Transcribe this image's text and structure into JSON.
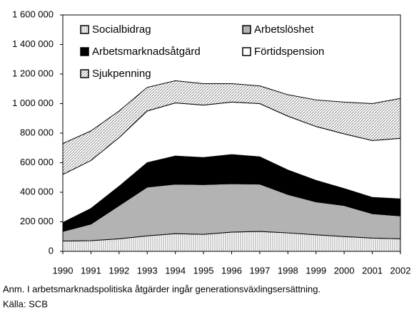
{
  "chart_data": {
    "type": "stacked_area",
    "x": [
      1990,
      1991,
      1992,
      1993,
      1994,
      1995,
      1996,
      1997,
      1998,
      1999,
      2000,
      2001,
      2002
    ],
    "xlim": [
      1990,
      2002
    ],
    "xticks": [
      1990,
      1991,
      1992,
      1993,
      1994,
      1995,
      1996,
      1997,
      1998,
      1999,
      2000,
      2001,
      2002
    ],
    "ylim": [
      0,
      1600000
    ],
    "yticks": [
      0,
      {
        "value": 200000,
        "label": "200 000"
      },
      {
        "value": 400000,
        "label": "400 000"
      },
      {
        "value": 600000,
        "label": "600 000"
      },
      {
        "value": 800000,
        "label": "800 000"
      },
      {
        "value": 1000000,
        "label": "1 000 000"
      },
      {
        "value": 1200000,
        "label": "1 200 000"
      },
      {
        "value": 1400000,
        "label": "1 400 000"
      },
      {
        "value": 1600000,
        "label": "1 600 000"
      }
    ],
    "series": [
      {
        "name": "Socialbidrag",
        "color": "#ffffff",
        "pattern": "vertical",
        "values": [
          70000,
          72000,
          85000,
          105000,
          120000,
          115000,
          130000,
          135000,
          125000,
          112000,
          100000,
          90000,
          85000
        ]
      },
      {
        "name": "Arbetslöshet",
        "color": "#b3b3b3",
        "values": [
          65000,
          113000,
          225000,
          330000,
          335000,
          337000,
          328000,
          320000,
          260000,
          223000,
          210000,
          165000,
          155000
        ]
      },
      {
        "name": "Arbetsmarknadsåtgärd",
        "color": "#000000",
        "values": [
          60000,
          105000,
          130000,
          165000,
          190000,
          183000,
          197000,
          185000,
          165000,
          145000,
          115000,
          110000,
          115000
        ]
      },
      {
        "name": "Förtidspension",
        "color": "#ffffff",
        "values": [
          325000,
          325000,
          330000,
          350000,
          360000,
          355000,
          355000,
          360000,
          365000,
          365000,
          370000,
          385000,
          410000
        ]
      },
      {
        "name": "Sjukpenning",
        "color": "#ffffff",
        "pattern": "diagonal",
        "values": [
          210000,
          200000,
          180000,
          160000,
          150000,
          145000,
          125000,
          120000,
          145000,
          180000,
          215000,
          250000,
          270000
        ]
      }
    ],
    "note": "Anm. I arbetsmarknadspolitiska åtgärder ingår generationsväxlingsersättning.",
    "source": "Källa: SCB"
  }
}
